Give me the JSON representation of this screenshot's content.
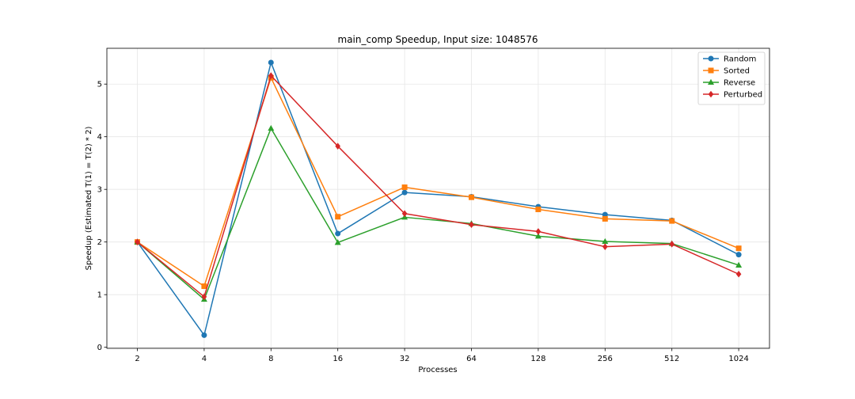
{
  "chart_data": {
    "type": "line",
    "title": "main_comp Speedup, Input size: 1048576",
    "xlabel": "Processes",
    "ylabel": "Speedup (Estimated T(1) = T(2) * 2)",
    "categories": [
      "2",
      "4",
      "8",
      "16",
      "32",
      "64",
      "128",
      "256",
      "512",
      "1024"
    ],
    "y_ticks": [
      0,
      1,
      2,
      3,
      4,
      5
    ],
    "ylim": [
      -0.02,
      5.68
    ],
    "grid": true,
    "legend_position": "top-right",
    "series": [
      {
        "name": "Random",
        "color": "#1f77b4",
        "marker": "circle",
        "values": [
          2.0,
          0.23,
          5.41,
          2.16,
          2.94,
          2.86,
          2.67,
          2.52,
          2.41,
          1.76
        ]
      },
      {
        "name": "Sorted",
        "color": "#ff7f0e",
        "marker": "square",
        "values": [
          2.0,
          1.16,
          5.12,
          2.48,
          3.04,
          2.85,
          2.62,
          2.44,
          2.4,
          1.88
        ]
      },
      {
        "name": "Reverse",
        "color": "#2ca02c",
        "marker": "triangle",
        "values": [
          2.0,
          0.91,
          4.16,
          1.99,
          2.47,
          2.35,
          2.11,
          2.01,
          1.97,
          1.56
        ]
      },
      {
        "name": "Perturbed",
        "color": "#d62728",
        "marker": "diamond",
        "values": [
          2.0,
          0.96,
          5.16,
          3.82,
          2.54,
          2.33,
          2.2,
          1.91,
          1.96,
          1.39
        ]
      }
    ]
  }
}
